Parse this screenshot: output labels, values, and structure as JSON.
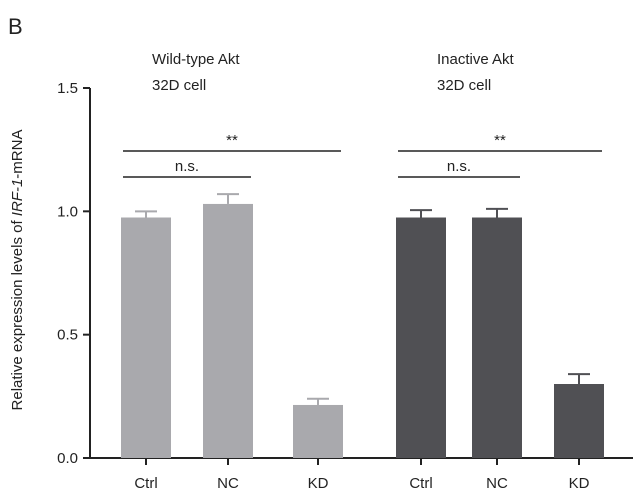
{
  "panel_label": "B",
  "chart_data": {
    "type": "bar",
    "ylabel_prefix": "Relative expression levels of ",
    "ylabel_gene": "IRF-1",
    "ylabel_suffix": "-mRNA",
    "ylim": [
      0,
      1.5
    ],
    "yticks": [
      "0.0",
      "0.5",
      "1.0",
      "1.5"
    ],
    "grid": false,
    "groups": [
      {
        "label_line1": "Wild-type Akt",
        "label_line2": "32D cell",
        "color": "#a9a9ad",
        "bars": [
          {
            "category": "Ctrl",
            "value": 0.975,
            "error": 0.025
          },
          {
            "category": "NC",
            "value": 1.03,
            "error": 0.04
          },
          {
            "category": "KD",
            "value": 0.215,
            "error": 0.025
          }
        ],
        "comparisons": [
          {
            "from": "Ctrl",
            "to": "NC",
            "label": "n.s."
          },
          {
            "from": "Ctrl",
            "to": "KD",
            "label": "**"
          }
        ]
      },
      {
        "label_line1": "Inactive Akt",
        "label_line2": "32D cell",
        "color": "#505054",
        "bars": [
          {
            "category": "Ctrl",
            "value": 0.975,
            "error": 0.03
          },
          {
            "category": "NC",
            "value": 0.975,
            "error": 0.035
          },
          {
            "category": "KD",
            "value": 0.3,
            "error": 0.04
          }
        ],
        "comparisons": [
          {
            "from": "Ctrl",
            "to": "NC",
            "label": "n.s."
          },
          {
            "from": "Ctrl",
            "to": "KD",
            "label": "**"
          }
        ]
      }
    ]
  }
}
